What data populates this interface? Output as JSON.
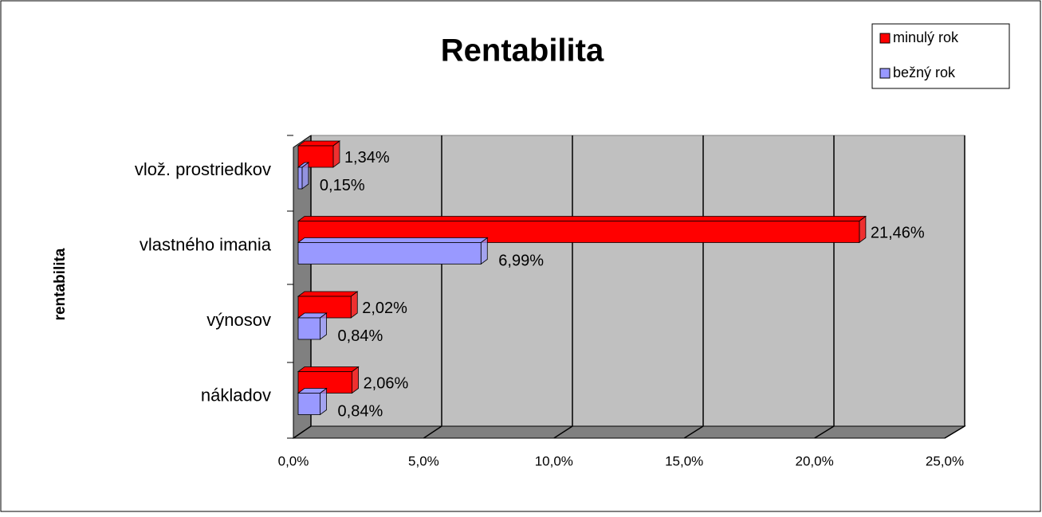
{
  "chart_data": {
    "type": "bar3d_horizontal",
    "title": "Rentabilita",
    "y_axis_label": "rentabilita",
    "categories": [
      "vlož. prostriedkov",
      "vlastného imania",
      "výnosov",
      "nákladov"
    ],
    "series": [
      {
        "name": "minulý rok",
        "color": "#ff0000",
        "values": [
          1.34,
          21.46,
          2.02,
          2.06
        ],
        "value_labels": [
          "1,34%",
          "21,46%",
          "2,02%",
          "2,06%"
        ]
      },
      {
        "name": "bežný rok",
        "color": "#9999ff",
        "values": [
          0.15,
          6.99,
          0.84,
          0.84
        ],
        "value_labels": [
          "0,15%",
          "6,99%",
          "0,84%",
          "0,84%"
        ]
      }
    ],
    "xlim": [
      0,
      25
    ],
    "xticks": [
      {
        "value": 0,
        "label": "0,0%"
      },
      {
        "value": 5,
        "label": "5,0%"
      },
      {
        "value": 10,
        "label": "10,0%"
      },
      {
        "value": 15,
        "label": "15,0%"
      },
      {
        "value": 20,
        "label": "20,0%"
      },
      {
        "value": 25,
        "label": "25,0%"
      }
    ],
    "grid": true,
    "legend": "top-right"
  }
}
